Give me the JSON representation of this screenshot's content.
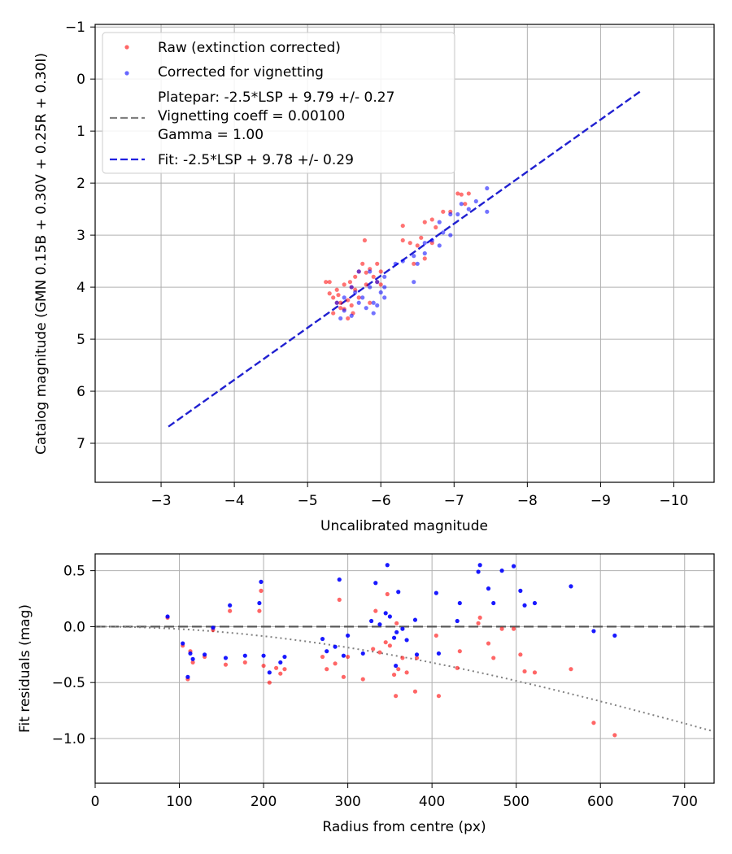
{
  "chart_data": [
    {
      "type": "scatter",
      "xlabel": "Uncalibrated magnitude",
      "ylabel": "Catalog magnitude (GMN 0.15B + 0.30V + 0.25R + 0.30I)",
      "xlim": [
        -2.1,
        -10.55
      ],
      "ylim": [
        -1.05,
        7.75
      ],
      "x_inverted": true,
      "y_inverted": true,
      "grid": true,
      "xticks": [
        -3,
        -4,
        -5,
        -6,
        -7,
        -8,
        -9,
        -10
      ],
      "yticks": [
        -1,
        0,
        1,
        2,
        3,
        4,
        5,
        6,
        7
      ],
      "legend_position": "upper-left",
      "legend": {
        "raw": "Raw (extinction corrected)",
        "corrected": "Corrected for vignetting",
        "platepar_line1": "Platepar: -2.5*LSP + 9.79 +/- 0.27",
        "platepar_line2": "Vignetting coeff = 0.00100",
        "platepar_line3": "Gamma = 1.00",
        "fit": "Fit: -2.5*LSP + 9.78 +/- 0.29"
      },
      "fit_line": {
        "offset": 9.78,
        "slope_note": "-2.5*LSP"
      },
      "series": [
        {
          "name": "Raw (extinction corrected)",
          "color": "#ff0000",
          "points": [
            [
              -5.3,
              4.12
            ],
            [
              -5.25,
              3.9
            ],
            [
              -5.35,
              4.2
            ],
            [
              -5.4,
              4.05
            ],
            [
              -5.45,
              4.3
            ],
            [
              -5.5,
              4.42
            ],
            [
              -5.55,
              4.25
            ],
            [
              -5.6,
              4.0
            ],
            [
              -5.65,
              3.8
            ],
            [
              -5.7,
              3.7
            ],
            [
              -5.75,
              3.55
            ],
            [
              -5.8,
              3.72
            ],
            [
              -5.85,
              3.65
            ],
            [
              -5.9,
              3.8
            ],
            [
              -5.95,
              3.9
            ],
            [
              -6.0,
              3.7
            ],
            [
              -5.78,
              3.1
            ],
            [
              -5.5,
              3.95
            ],
            [
              -5.6,
              4.35
            ],
            [
              -5.45,
              4.4
            ],
            [
              -5.42,
              4.15
            ],
            [
              -5.62,
              4.5
            ],
            [
              -5.7,
              4.2
            ],
            [
              -5.35,
              4.5
            ],
            [
              -5.55,
              4.6
            ],
            [
              -5.95,
              3.55
            ],
            [
              -6.3,
              2.82
            ],
            [
              -6.3,
              3.1
            ],
            [
              -6.4,
              3.15
            ],
            [
              -6.5,
              3.2
            ],
            [
              -6.55,
              3.05
            ],
            [
              -6.6,
              2.75
            ],
            [
              -6.7,
              2.7
            ],
            [
              -6.75,
              2.85
            ],
            [
              -6.85,
              2.55
            ],
            [
              -6.95,
              2.55
            ],
            [
              -7.05,
              2.2
            ],
            [
              -7.1,
              2.22
            ],
            [
              -7.15,
              2.4
            ],
            [
              -7.2,
              2.2
            ],
            [
              -6.45,
              3.55
            ],
            [
              -6.6,
              3.45
            ],
            [
              -6.7,
              3.15
            ],
            [
              -6.0,
              3.95
            ],
            [
              -5.85,
              4.3
            ],
            [
              -5.58,
              3.9
            ],
            [
              -5.65,
              4.05
            ],
            [
              -5.8,
              3.95
            ],
            [
              -5.3,
              3.9
            ],
            [
              -5.4,
              4.3
            ]
          ]
        },
        {
          "name": "Corrected for vignetting",
          "color": "#0000ff",
          "points": [
            [
              -5.4,
              4.3
            ],
            [
              -5.5,
              4.45
            ],
            [
              -5.6,
              4.55
            ],
            [
              -5.45,
              4.6
            ],
            [
              -5.7,
              4.3
            ],
            [
              -5.8,
              4.4
            ],
            [
              -5.9,
              4.5
            ],
            [
              -5.75,
              4.2
            ],
            [
              -5.85,
              4.0
            ],
            [
              -5.95,
              3.9
            ],
            [
              -6.0,
              4.1
            ],
            [
              -6.05,
              3.8
            ],
            [
              -5.85,
              3.7
            ],
            [
              -5.7,
              3.7
            ],
            [
              -5.65,
              4.1
            ],
            [
              -5.95,
              4.35
            ],
            [
              -6.05,
              4.0
            ],
            [
              -6.2,
              3.55
            ],
            [
              -6.3,
              3.5
            ],
            [
              -6.45,
              3.4
            ],
            [
              -6.5,
              3.55
            ],
            [
              -6.6,
              3.35
            ],
            [
              -6.7,
              3.1
            ],
            [
              -6.8,
              3.2
            ],
            [
              -6.85,
              2.95
            ],
            [
              -6.95,
              3.0
            ],
            [
              -7.05,
              2.6
            ],
            [
              -7.2,
              2.5
            ],
            [
              -7.3,
              2.35
            ],
            [
              -7.45,
              2.1
            ],
            [
              -7.45,
              2.55
            ],
            [
              -6.95,
              2.6
            ],
            [
              -6.8,
              2.75
            ],
            [
              -7.1,
              2.4
            ],
            [
              -6.45,
              3.9
            ],
            [
              -6.6,
              3.15
            ],
            [
              -6.05,
              4.2
            ],
            [
              -5.5,
              4.2
            ],
            [
              -5.6,
              4.0
            ],
            [
              -5.9,
              4.3
            ]
          ]
        }
      ]
    },
    {
      "type": "scatter",
      "xlabel": "Radius from centre (px)",
      "ylabel": "Fit residuals (mag)",
      "xlim": [
        0,
        735
      ],
      "ylim": [
        -1.4,
        0.65
      ],
      "grid": true,
      "xticks": [
        0,
        100,
        200,
        300,
        400,
        500,
        600,
        700
      ],
      "yticks": [
        0.5,
        0.0,
        -0.5,
        -1.0
      ],
      "ytick_labels": [
        "0.5",
        "0.0",
        "−0.5",
        "−1.0"
      ],
      "reference_line": 0.0,
      "vignetting_curve_coeff": 0.001,
      "series": [
        {
          "name": "Raw (extinction corrected)",
          "color": "#ff0000",
          "points": [
            [
              86,
              0.08
            ],
            [
              104,
              -0.17
            ],
            [
              110,
              -0.47
            ],
            [
              113,
              -0.22
            ],
            [
              116,
              -0.32
            ],
            [
              130,
              -0.27
            ],
            [
              140,
              -0.03
            ],
            [
              155,
              -0.34
            ],
            [
              160,
              0.14
            ],
            [
              178,
              -0.32
            ],
            [
              195,
              0.14
            ],
            [
              197,
              0.32
            ],
            [
              200,
              -0.35
            ],
            [
              207,
              -0.5
            ],
            [
              215,
              -0.37
            ],
            [
              220,
              -0.42
            ],
            [
              225,
              -0.38
            ],
            [
              270,
              -0.27
            ],
            [
              275,
              -0.38
            ],
            [
              285,
              -0.33
            ],
            [
              290,
              0.24
            ],
            [
              295,
              -0.45
            ],
            [
              300,
              -0.27
            ],
            [
              318,
              -0.47
            ],
            [
              330,
              -0.2
            ],
            [
              333,
              0.14
            ],
            [
              338,
              -0.23
            ],
            [
              345,
              -0.14
            ],
            [
              347,
              0.29
            ],
            [
              350,
              -0.17
            ],
            [
              355,
              -0.43
            ],
            [
              357,
              -0.62
            ],
            [
              358,
              0.03
            ],
            [
              360,
              -0.38
            ],
            [
              365,
              -0.28
            ],
            [
              370,
              -0.41
            ],
            [
              380,
              -0.58
            ],
            [
              382,
              -0.28
            ],
            [
              405,
              -0.08
            ],
            [
              408,
              -0.62
            ],
            [
              430,
              -0.37
            ],
            [
              433,
              -0.22
            ],
            [
              455,
              0.03
            ],
            [
              457,
              0.08
            ],
            [
              467,
              -0.15
            ],
            [
              473,
              -0.28
            ],
            [
              483,
              -0.02
            ],
            [
              497,
              -0.02
            ],
            [
              505,
              -0.25
            ],
            [
              510,
              -0.4
            ],
            [
              522,
              -0.41
            ],
            [
              565,
              -0.38
            ],
            [
              592,
              -0.86
            ],
            [
              617,
              -0.97
            ]
          ]
        },
        {
          "name": "Corrected for vignetting",
          "color": "#0000ff",
          "points": [
            [
              86,
              0.09
            ],
            [
              104,
              -0.15
            ],
            [
              110,
              -0.45
            ],
            [
              113,
              -0.24
            ],
            [
              116,
              -0.29
            ],
            [
              130,
              -0.25
            ],
            [
              140,
              -0.01
            ],
            [
              155,
              -0.28
            ],
            [
              160,
              0.19
            ],
            [
              178,
              -0.26
            ],
            [
              195,
              0.21
            ],
            [
              197,
              0.4
            ],
            [
              200,
              -0.26
            ],
            [
              207,
              -0.41
            ],
            [
              220,
              -0.32
            ],
            [
              225,
              -0.27
            ],
            [
              270,
              -0.11
            ],
            [
              275,
              -0.22
            ],
            [
              285,
              -0.18
            ],
            [
              290,
              0.42
            ],
            [
              295,
              -0.26
            ],
            [
              300,
              -0.08
            ],
            [
              318,
              -0.24
            ],
            [
              328,
              0.05
            ],
            [
              333,
              0.39
            ],
            [
              338,
              0.02
            ],
            [
              345,
              0.12
            ],
            [
              347,
              0.55
            ],
            [
              350,
              0.09
            ],
            [
              355,
              -0.1
            ],
            [
              357,
              -0.35
            ],
            [
              358,
              -0.05
            ],
            [
              360,
              0.31
            ],
            [
              365,
              -0.02
            ],
            [
              370,
              -0.12
            ],
            [
              380,
              0.06
            ],
            [
              382,
              -0.25
            ],
            [
              405,
              0.3
            ],
            [
              408,
              -0.24
            ],
            [
              430,
              0.05
            ],
            [
              433,
              0.21
            ],
            [
              455,
              0.49
            ],
            [
              457,
              0.55
            ],
            [
              467,
              0.34
            ],
            [
              473,
              0.21
            ],
            [
              483,
              0.5
            ],
            [
              497,
              0.54
            ],
            [
              505,
              0.32
            ],
            [
              510,
              0.19
            ],
            [
              522,
              0.21
            ],
            [
              565,
              0.36
            ],
            [
              592,
              -0.04
            ],
            [
              617,
              -0.08
            ]
          ]
        }
      ]
    }
  ]
}
